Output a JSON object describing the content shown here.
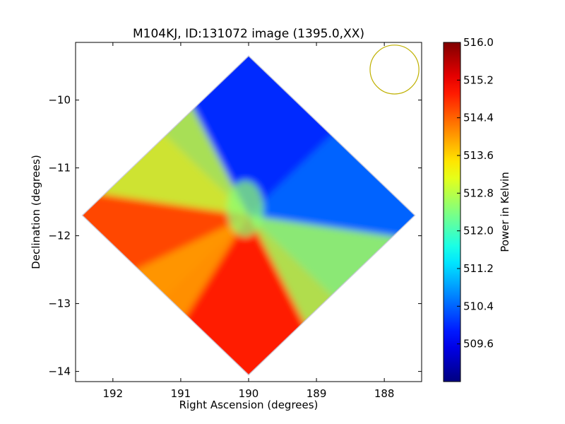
{
  "chart_data": {
    "type": "heatmap",
    "title": "M104KJ, ID:131072 image (1395.0,XX)",
    "xlabel": "Right Ascension (degrees)",
    "ylabel": "Declination (degrees)",
    "xlim": [
      192.55,
      187.45
    ],
    "ylim": [
      -14.15,
      -9.15
    ],
    "x_inverted": true,
    "xticks": [
      192,
      191,
      190,
      189,
      188
    ],
    "xtick_labels": [
      "192",
      "191",
      "190",
      "189",
      "188"
    ],
    "yticks": [
      -10,
      -11,
      -12,
      -13,
      -14
    ],
    "ytick_labels": [
      "−10",
      "−11",
      "−12",
      "−13",
      "−14"
    ],
    "colorbar": {
      "label": "Power in Kelvin",
      "range": [
        508.8,
        516.0
      ],
      "ticks": [
        516.0,
        515.2,
        514.4,
        513.6,
        512.8,
        512.0,
        511.2,
        510.4,
        509.6
      ],
      "tick_labels": [
        "516.0",
        "515.2",
        "514.4",
        "513.6",
        "512.8",
        "512.0",
        "511.2",
        "510.4",
        "509.6"
      ],
      "colormap": "jet"
    },
    "footprint": {
      "shape": "diamond",
      "center_ra": 190.0,
      "center_dec": -11.7,
      "half_extent_ra": 2.45,
      "half_extent_dec": 2.35
    },
    "regions": [
      {
        "position": "north lobe",
        "ra": 189.85,
        "dec": -9.9,
        "value": 510.0
      },
      {
        "position": "east lobe",
        "ra": 188.6,
        "dec": -11.6,
        "value": 510.4
      },
      {
        "position": "south lobe",
        "ra": 190.0,
        "dec": -13.3,
        "value": 514.9
      },
      {
        "position": "west lobe",
        "ra": 191.6,
        "dec": -11.8,
        "value": 514.6
      },
      {
        "position": "centre",
        "ra": 190.05,
        "dec": -11.6,
        "value": 512.5
      }
    ],
    "beam": {
      "ra": 187.85,
      "dec": -9.55,
      "radius_deg": 0.36,
      "color": "#bfb000"
    },
    "grid": false,
    "legend": "none"
  }
}
